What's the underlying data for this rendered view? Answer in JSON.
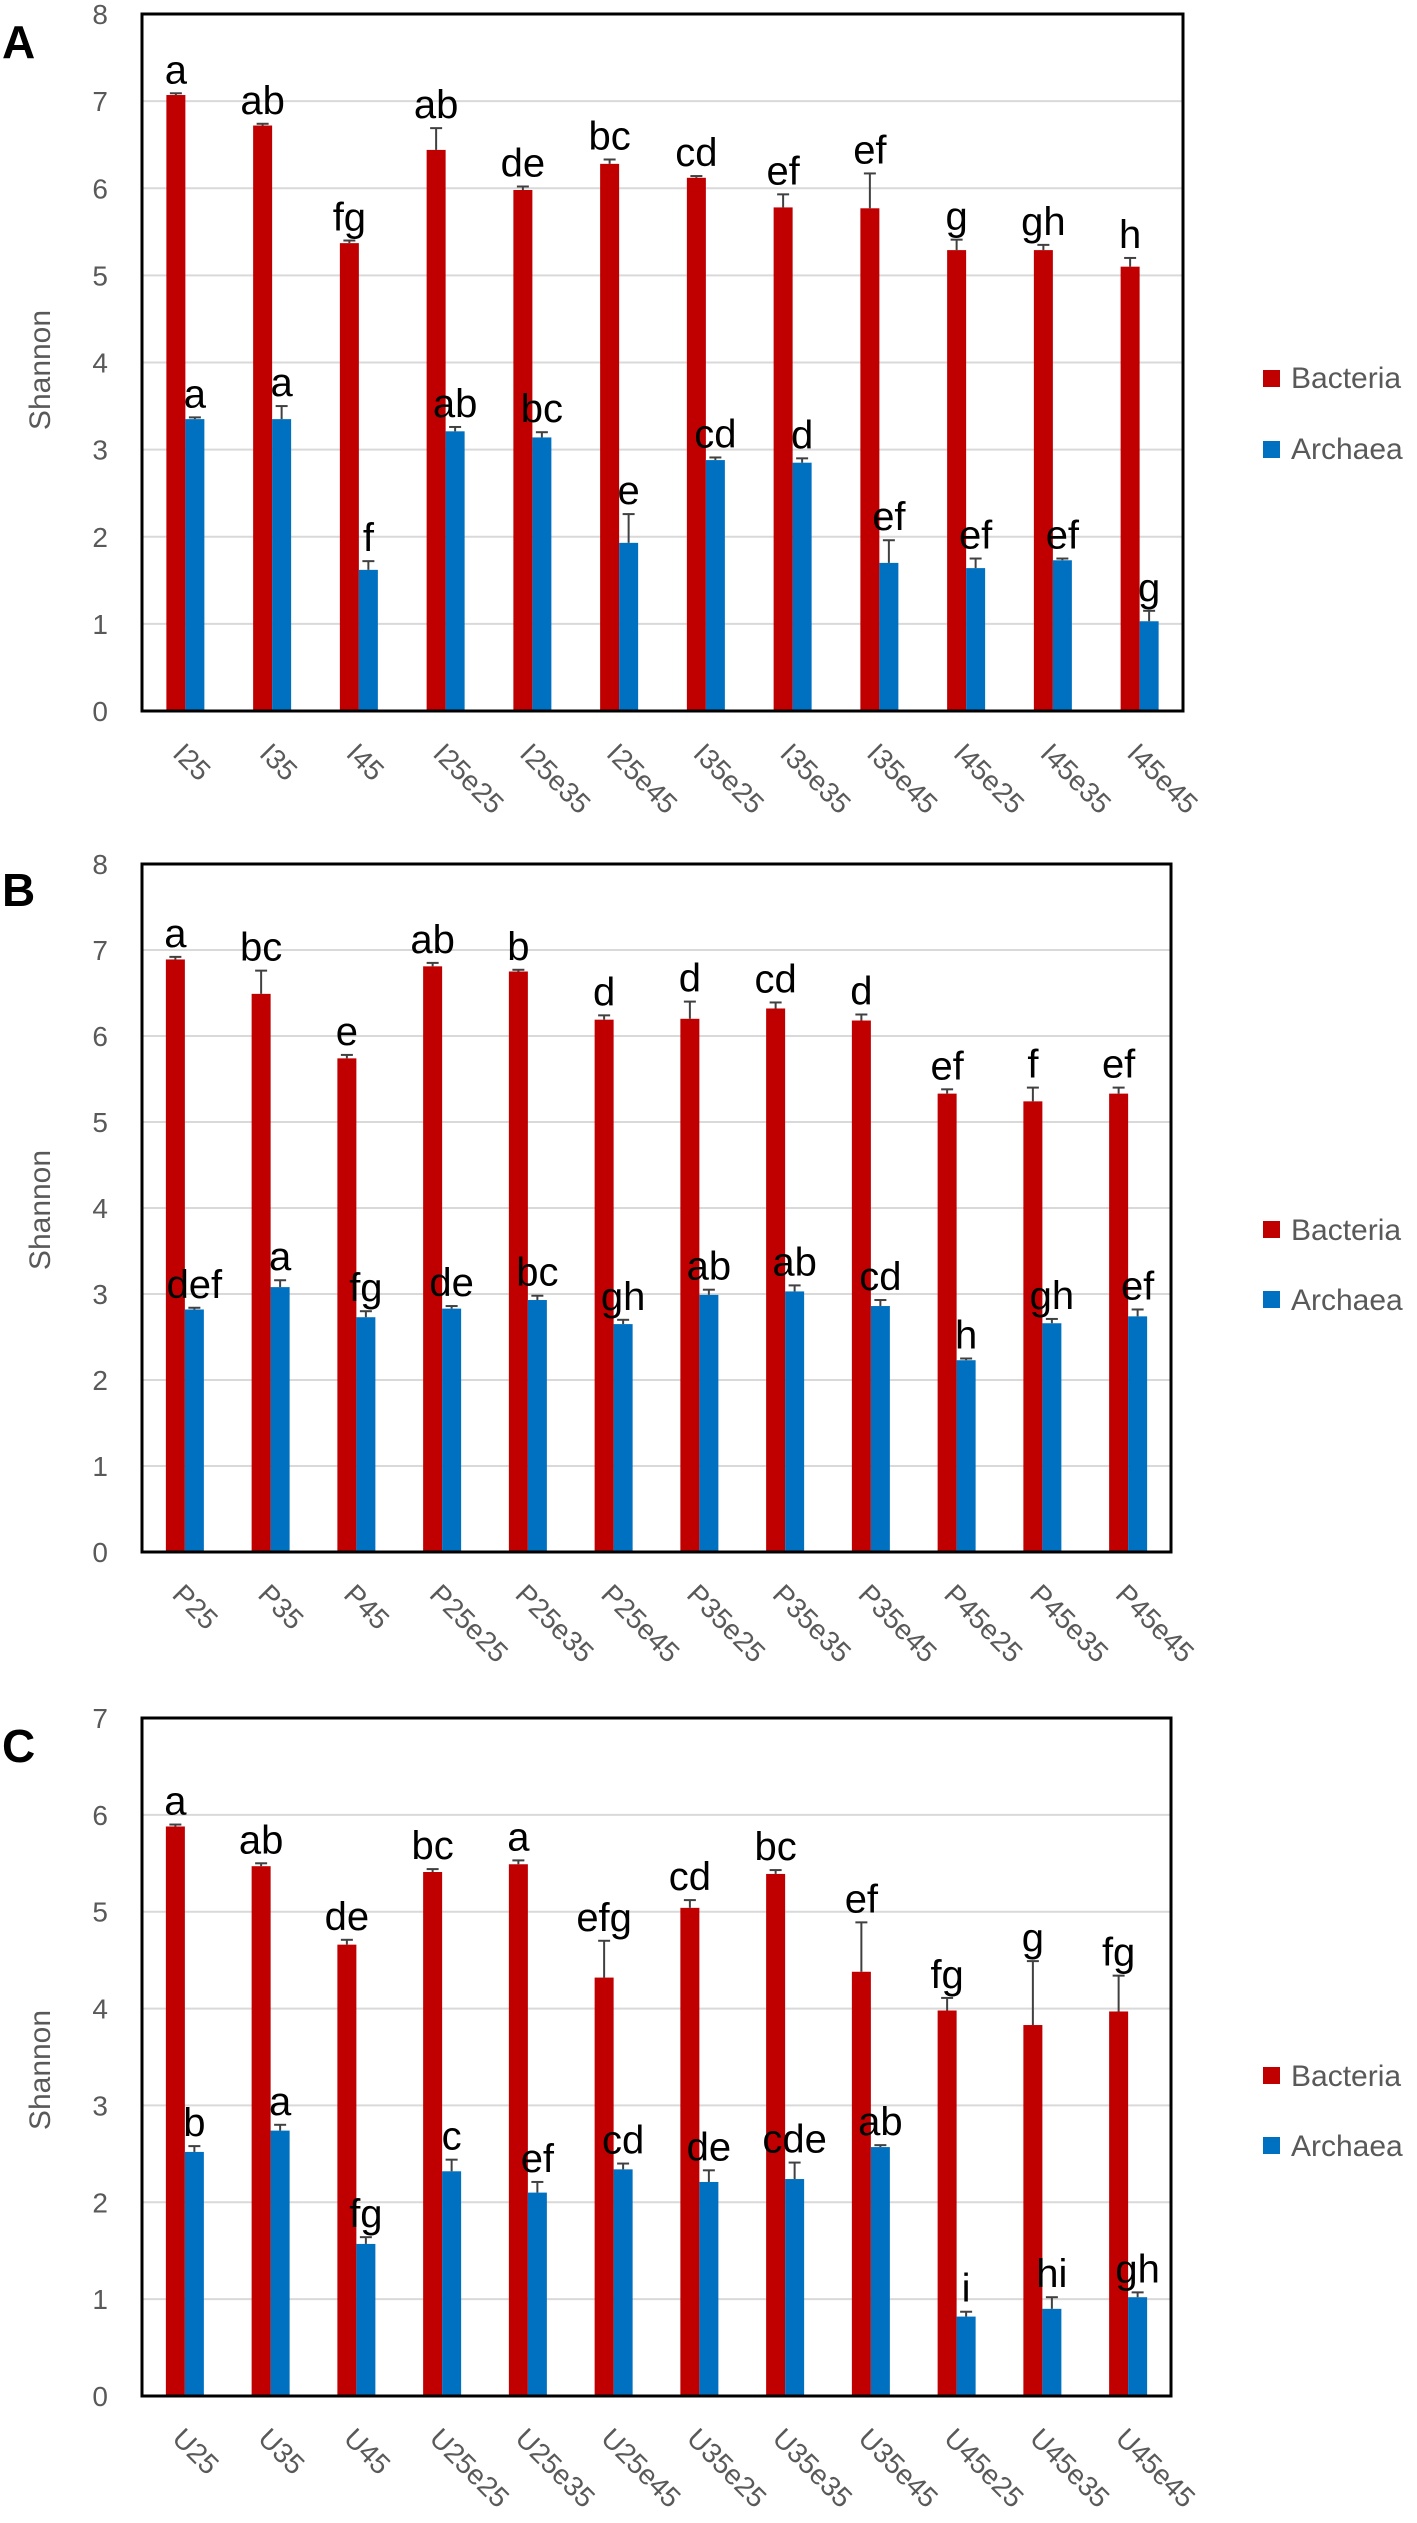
{
  "colors": {
    "bacteria": "#C00000",
    "archaea": "#0070C0",
    "grid": "#d9d9d9",
    "axis": "#000000",
    "error": "#404040"
  },
  "legend": {
    "bacteria": "Bacteria",
    "archaea": "Archaea"
  },
  "chart_data": [
    {
      "type": "bar",
      "panel_label": "A",
      "ylabel": "Shannon",
      "ylim": [
        0,
        8
      ],
      "yticks": [
        "0",
        "1",
        "2",
        "3",
        "4",
        "5",
        "6",
        "7",
        "8"
      ],
      "legend_position": "right",
      "categories": [
        "I25",
        "I35",
        "I45",
        "I25e25",
        "I25e35",
        "I25e45",
        "I35e25",
        "I35e35",
        "I35e45",
        "I45e25",
        "I45e35",
        "I45e45"
      ],
      "series": [
        {
          "name": "Bacteria",
          "values": [
            7.07,
            6.72,
            5.37,
            6.44,
            5.98,
            6.28,
            6.12,
            5.78,
            5.77,
            5.29,
            5.29,
            5.1
          ],
          "errors": [
            0.02,
            0.02,
            0.03,
            0.25,
            0.04,
            0.05,
            0.02,
            0.15,
            0.4,
            0.12,
            0.06,
            0.1
          ],
          "labels": [
            "a",
            "ab",
            "fg",
            "ab",
            "de",
            "bc",
            "cd",
            "ef",
            "ef",
            "g",
            "gh",
            "h"
          ]
        },
        {
          "name": "Archaea",
          "values": [
            3.35,
            3.35,
            1.62,
            3.21,
            3.14,
            1.93,
            2.88,
            2.85,
            1.7,
            1.64,
            1.73,
            1.03
          ],
          "errors": [
            0.02,
            0.15,
            0.1,
            0.05,
            0.06,
            0.33,
            0.03,
            0.05,
            0.26,
            0.11,
            0.02,
            0.12
          ],
          "labels": [
            "a",
            "a",
            "f",
            "ab",
            "bc",
            "e",
            "cd",
            "d",
            "ef",
            "ef",
            "ef",
            "g"
          ]
        }
      ]
    },
    {
      "type": "bar",
      "panel_label": "B",
      "ylabel": "Shannon",
      "ylim": [
        0,
        8
      ],
      "yticks": [
        "0",
        "1",
        "2",
        "3",
        "4",
        "5",
        "6",
        "7",
        "8"
      ],
      "legend_position": "right",
      "categories": [
        "P25",
        "P35",
        "P45",
        "P25e25",
        "P25e35",
        "P25e45",
        "P35e25",
        "P35e35",
        "P35e45",
        "P45e25",
        "P45e35",
        "P45e45"
      ],
      "series": [
        {
          "name": "Bacteria",
          "values": [
            6.89,
            6.49,
            5.74,
            6.81,
            6.75,
            6.19,
            6.2,
            6.32,
            6.18,
            5.33,
            5.24,
            5.33
          ],
          "errors": [
            0.03,
            0.27,
            0.04,
            0.04,
            0.02,
            0.05,
            0.2,
            0.07,
            0.07,
            0.05,
            0.16,
            0.07
          ],
          "labels": [
            "a",
            "bc",
            "e",
            "ab",
            "b",
            "d",
            "d",
            "cd",
            "d",
            "ef",
            "f",
            "ef"
          ]
        },
        {
          "name": "Archaea",
          "values": [
            2.82,
            3.08,
            2.73,
            2.83,
            2.93,
            2.65,
            2.99,
            3.03,
            2.86,
            2.23,
            2.66,
            2.74
          ],
          "errors": [
            0.02,
            0.08,
            0.07,
            0.03,
            0.05,
            0.05,
            0.06,
            0.07,
            0.07,
            0.02,
            0.05,
            0.08
          ],
          "labels": [
            "def",
            "a",
            "fg",
            "de",
            "bc",
            "gh",
            "ab",
            "ab",
            "cd",
            "h",
            "gh",
            "ef"
          ]
        }
      ]
    },
    {
      "type": "bar",
      "panel_label": "C",
      "ylabel": "Shannon",
      "ylim": [
        0,
        7
      ],
      "yticks": [
        "0",
        "1",
        "2",
        "3",
        "4",
        "5",
        "6",
        "7"
      ],
      "legend_position": "right",
      "categories": [
        "U25",
        "U35",
        "U45",
        "U25e25",
        "U25e35",
        "U25e45",
        "U35e25",
        "U35e35",
        "U35e45",
        "U45e25",
        "U45e35",
        "U45e45"
      ],
      "series": [
        {
          "name": "Bacteria",
          "values": [
            5.88,
            5.47,
            4.66,
            5.41,
            5.49,
            4.32,
            5.04,
            5.39,
            4.38,
            3.98,
            3.83,
            3.97
          ],
          "errors": [
            0.02,
            0.03,
            0.05,
            0.03,
            0.04,
            0.38,
            0.08,
            0.04,
            0.51,
            0.13,
            0.66,
            0.37
          ],
          "labels": [
            "a",
            "ab",
            "de",
            "bc",
            "a",
            "efg",
            "cd",
            "bc",
            "ef",
            "fg",
            "g",
            "fg"
          ]
        },
        {
          "name": "Archaea",
          "values": [
            2.52,
            2.74,
            1.57,
            2.32,
            2.1,
            2.34,
            2.21,
            2.24,
            2.57,
            0.82,
            0.9,
            1.02
          ],
          "errors": [
            0.06,
            0.06,
            0.07,
            0.12,
            0.11,
            0.06,
            0.12,
            0.17,
            0.02,
            0.05,
            0.12,
            0.05
          ],
          "labels": [
            "b",
            "a",
            "fg",
            "c",
            "ef",
            "cd",
            "de",
            "cde",
            "ab",
            "i",
            "hi",
            "gh"
          ]
        }
      ]
    }
  ]
}
